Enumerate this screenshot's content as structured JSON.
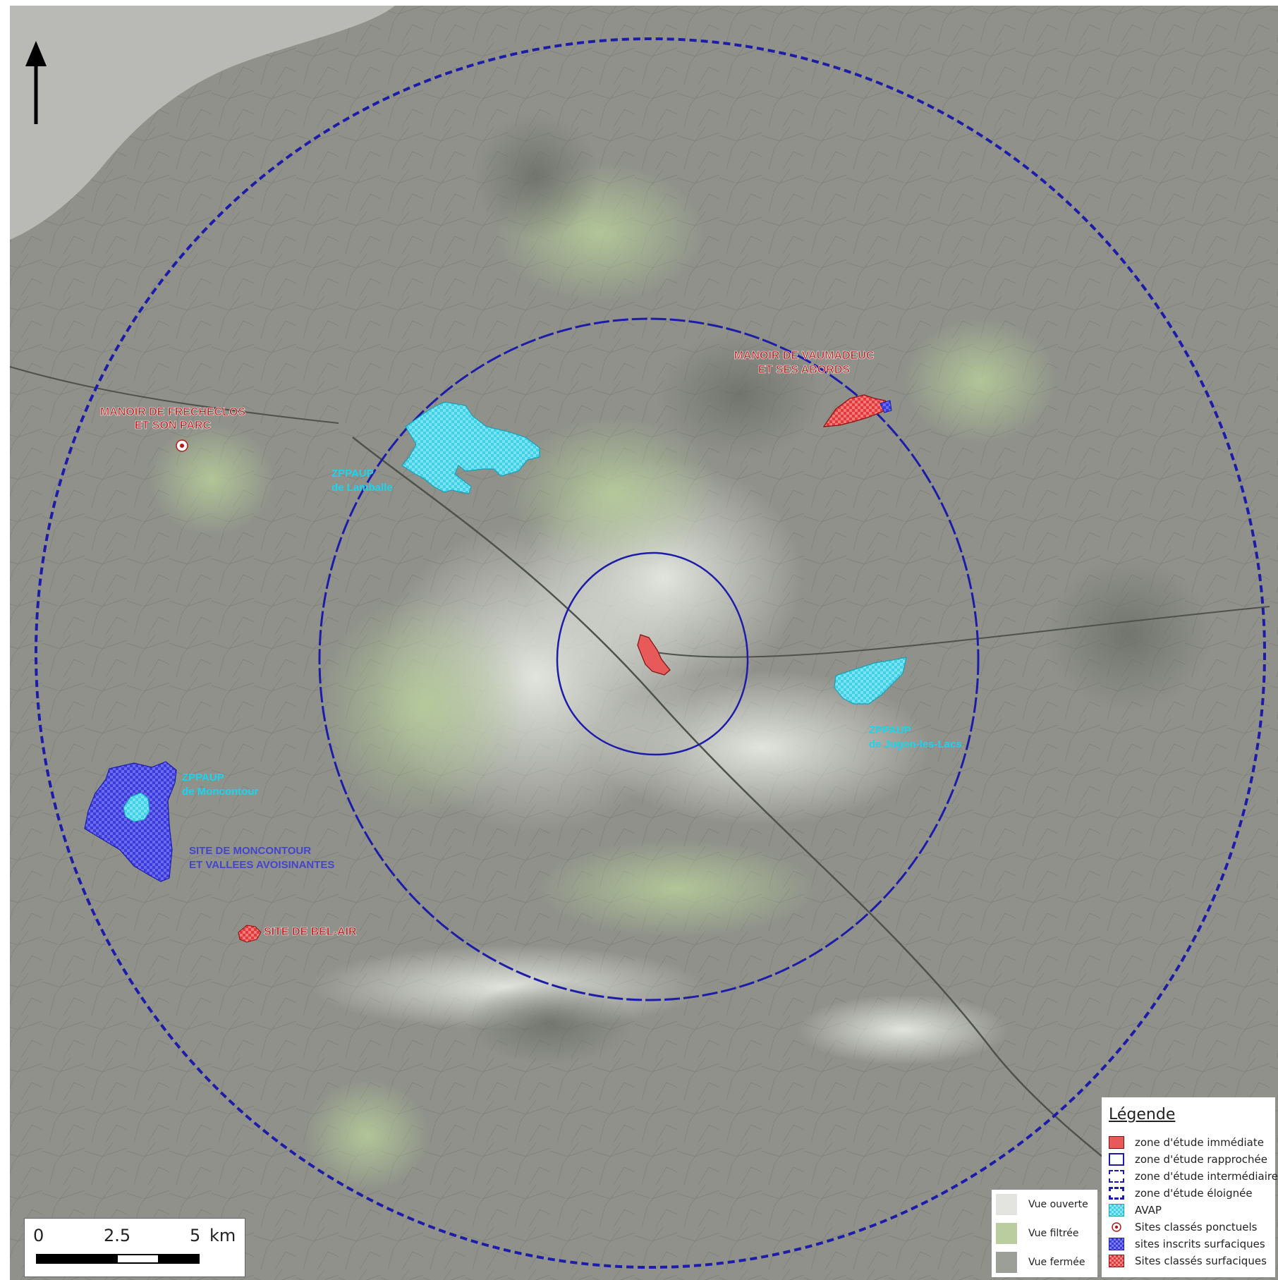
{
  "map": {
    "labels": {
      "frecheclos_1": "MANOIR DE FRECHECLOS",
      "frecheclos_2": "ET SON PARC",
      "vaumadeuc_1": "MANOIR DE VAUMADEUC",
      "vaumadeuc_2": "ET SES ABORDS",
      "lamballe_1": "ZPPAUP",
      "lamballe_2": "de Lamballe",
      "jugon_1": "ZPPAUP",
      "jugon_2": "de Jugon-les-Lacs",
      "moncontour_1": "ZPPAUP",
      "moncontour_2": "de Moncontour",
      "site_moncontour_1": "SITE DE MONCONTOUR",
      "site_moncontour_2": "ET VALLEES AVOISINANTES",
      "belair": "SITE DE BEL-AIR"
    }
  },
  "legend": {
    "title": "Légende",
    "items": [
      {
        "label": "zone d'étude immédiate"
      },
      {
        "label": "zone d'étude rapprochée"
      },
      {
        "label": "zone d'étude intermédiaire"
      },
      {
        "label": "zone d'étude éloignée"
      },
      {
        "label": "AVAP"
      },
      {
        "label": "Sites classés ponctuels"
      },
      {
        "label": "sites inscrits surfaciques"
      },
      {
        "label": "Sites classés surfaciques"
      }
    ]
  },
  "vue_legend": {
    "items": [
      {
        "label": "Vue ouverte"
      },
      {
        "label": "Vue filtrée"
      },
      {
        "label": "Vue fermée"
      }
    ]
  },
  "scale": {
    "tick0": "0",
    "tick1": "2.5",
    "tick2": "5",
    "unit": "km"
  },
  "colors": {
    "study_zone_blue": "#1c1ca8",
    "immediate_zone_red": "#e85a5a",
    "avap_cyan": "#3fd0e6",
    "sites_inscrits_blue": "#3a3ad8",
    "sites_classes_red": "#e23a3a",
    "label_red": "#b51a1a",
    "label_cyan": "#19d5ef",
    "label_blue": "#4545cc",
    "base_gray": "#8f918a"
  }
}
